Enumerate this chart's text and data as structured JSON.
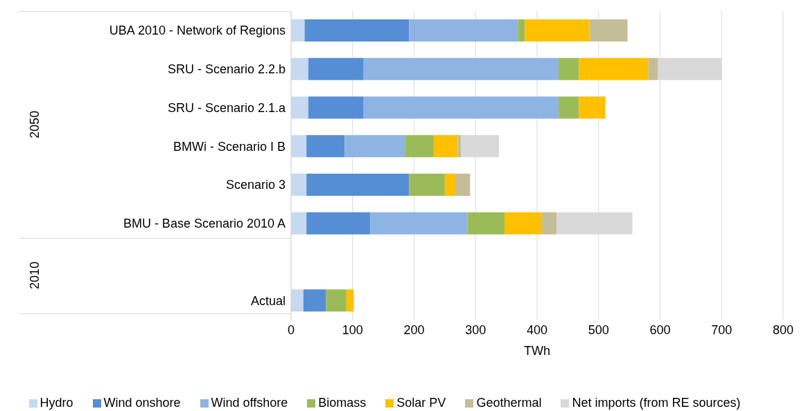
{
  "chart_data": {
    "type": "bar",
    "orientation": "horizontal",
    "stacked": true,
    "xlabel": "TWh",
    "categories": [
      "UBA 2010 - Network of Regions",
      "SRU - Scenario 2.2.b",
      "SRU - Scenario 2.1.a",
      "BMWi - Scenario I B",
      "Scenario 3",
      "BMU - Base Scenario 2010 A",
      null,
      "Actual"
    ],
    "series": [
      {
        "name": "Hydro",
        "color": "#c6d9f1",
        "values": [
          22,
          28,
          28,
          25,
          25,
          25,
          null,
          20
        ]
      },
      {
        "name": "Wind onshore",
        "color": "#558ed5",
        "values": [
          170,
          90,
          90,
          62,
          167,
          104,
          null,
          37
        ]
      },
      {
        "name": "Wind offshore",
        "color": "#8eb4e3",
        "values": [
          177,
          317,
          317,
          98,
          null,
          158,
          null,
          null
        ]
      },
      {
        "name": "Biomass",
        "color": "#9bbb59",
        "values": [
          11,
          33,
          33,
          47,
          58,
          60,
          null,
          33
        ]
      },
      {
        "name": "Solar PV",
        "color": "#ffc000",
        "values": [
          105,
          113,
          43,
          39,
          17,
          61,
          null,
          12
        ]
      },
      {
        "name": "Geothermal",
        "color": "#c4bd97",
        "values": [
          62,
          15,
          null,
          5,
          24,
          24,
          null,
          null
        ]
      },
      {
        "name": "Net imports (from RE sources)",
        "color": "#d9d9d9",
        "values": [
          null,
          104,
          null,
          62,
          null,
          123,
          null,
          null
        ]
      }
    ],
    "xlim": [
      0,
      800
    ],
    "xticks": [
      0,
      100,
      200,
      300,
      400,
      500,
      600,
      700,
      800
    ],
    "grid": "x",
    "legend": "bottom",
    "annotations": [
      "2050",
      "2010"
    ]
  }
}
